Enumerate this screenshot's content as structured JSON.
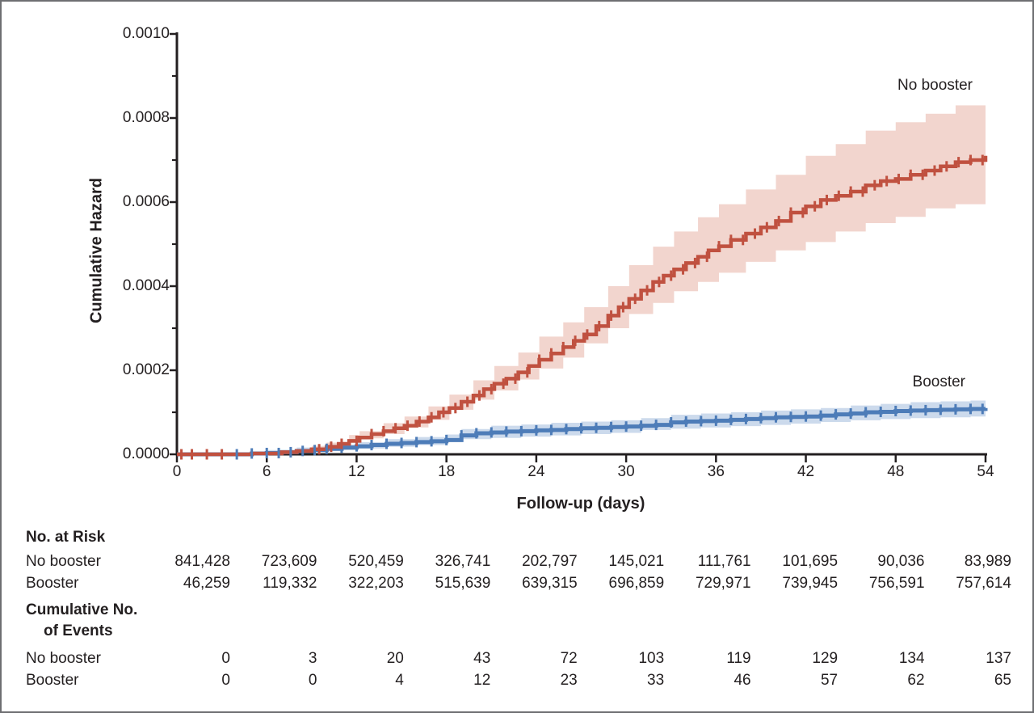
{
  "figure": {
    "y_axis_title": "Cumulative Hazard",
    "x_axis_title": "Follow-up (days)",
    "colors": {
      "no_booster_line": "#c05140",
      "no_booster_band": "#f2d5ce",
      "booster_line": "#4d7cb8",
      "booster_band": "#ccdaec",
      "axis": "#231f20",
      "text": "#231f20",
      "frame_border": "#6e6f72"
    }
  },
  "chart_data": {
    "type": "line",
    "subtype": "step-cumulative-hazard",
    "title": "",
    "xlabel": "Follow-up (days)",
    "ylabel": "Cumulative Hazard",
    "xlim": [
      0,
      54
    ],
    "ylim": [
      0,
      0.001
    ],
    "grid": false,
    "legend_position": "annotations-on-plot",
    "x_ticks": [
      0,
      6,
      12,
      18,
      24,
      30,
      36,
      42,
      48,
      54
    ],
    "x_tick_labels": [
      "0",
      "6",
      "12",
      "18",
      "24",
      "30",
      "36",
      "42",
      "48",
      "54"
    ],
    "y_ticks": [
      0,
      0.0002,
      0.0004,
      0.0006,
      0.0008,
      0.001
    ],
    "y_tick_labels": [
      "0.0000",
      "0.0002",
      "0.0004",
      "0.0006",
      "0.0008",
      "0.0010"
    ],
    "y_minor_ticks": [
      0.0001,
      0.0003,
      0.0005,
      0.0007,
      0.0009
    ],
    "series": [
      {
        "name": "No booster",
        "color": "#c05140",
        "band_color": "#f2d5ce",
        "points": [
          [
            0,
            0
          ],
          [
            5,
            2e-06
          ],
          [
            7,
            5e-06
          ],
          [
            8,
            8e-06
          ],
          [
            9,
            1.2e-05
          ],
          [
            10,
            1.8e-05
          ],
          [
            10.8,
            2.5e-05
          ],
          [
            11.5,
            3.2e-05
          ],
          [
            12.2,
            4e-05
          ],
          [
            13,
            4.8e-05
          ],
          [
            13.8,
            5.5e-05
          ],
          [
            14.5,
            6.2e-05
          ],
          [
            15.2,
            6.8e-05
          ],
          [
            16,
            7.8e-05
          ],
          [
            16.8,
            8.8e-05
          ],
          [
            17.5,
            0.0001
          ],
          [
            18.2,
            0.00011
          ],
          [
            19,
            0.000125
          ],
          [
            19.8,
            0.00014
          ],
          [
            20.5,
            0.000155
          ],
          [
            21.2,
            0.000168
          ],
          [
            22,
            0.00018
          ],
          [
            22.8,
            0.000195
          ],
          [
            23.5,
            0.00021
          ],
          [
            24.2,
            0.000225
          ],
          [
            25,
            0.00024
          ],
          [
            25.8,
            0.000255
          ],
          [
            26.5,
            0.00027
          ],
          [
            27.2,
            0.000285
          ],
          [
            28,
            0.000305
          ],
          [
            28.8,
            0.00033
          ],
          [
            29.5,
            0.00035
          ],
          [
            30.2,
            0.00037
          ],
          [
            31,
            0.00039
          ],
          [
            31.8,
            0.00041
          ],
          [
            32.5,
            0.000425
          ],
          [
            33.2,
            0.00044
          ],
          [
            34,
            0.000455
          ],
          [
            34.8,
            0.00047
          ],
          [
            35.5,
            0.000485
          ],
          [
            36.2,
            0.000495
          ],
          [
            37,
            0.00051
          ],
          [
            38,
            0.000525
          ],
          [
            39,
            0.00054
          ],
          [
            40,
            0.000555
          ],
          [
            41,
            0.000575
          ],
          [
            42,
            0.00059
          ],
          [
            43,
            0.000605
          ],
          [
            44,
            0.000615
          ],
          [
            45,
            0.000625
          ],
          [
            46,
            0.00064
          ],
          [
            47,
            0.00065
          ],
          [
            48,
            0.000655
          ],
          [
            49,
            0.000665
          ],
          [
            50,
            0.000675
          ],
          [
            51,
            0.000685
          ],
          [
            52,
            0.000695
          ],
          [
            53,
            0.0007
          ],
          [
            54,
            0.00071
          ]
        ],
        "band": [
          [
            7,
            2e-06,
            1e-05
          ],
          [
            9,
            6e-06,
            2e-05
          ],
          [
            10,
            1e-05,
            2.8e-05
          ],
          [
            11.5,
            2e-05,
            4.6e-05
          ],
          [
            12.2,
            2.7e-05,
            5.5e-05
          ],
          [
            13.8,
            3.8e-05,
            7.4e-05
          ],
          [
            15.2,
            4.8e-05,
            9e-05
          ],
          [
            16.8,
            6.4e-05,
            0.000114
          ],
          [
            18.2,
            8.2e-05,
            0.000142
          ],
          [
            19.8,
            0.000106,
            0.000176
          ],
          [
            21.2,
            0.00013,
            0.00021
          ],
          [
            22.8,
            0.000152,
            0.000242
          ],
          [
            24.2,
            0.000178,
            0.00028
          ],
          [
            25.8,
            0.000204,
            0.000314
          ],
          [
            27.2,
            0.00023,
            0.00035
          ],
          [
            28.8,
            0.000264,
            0.0004
          ],
          [
            30.2,
            0.0003,
            0.00045
          ],
          [
            31.8,
            0.000334,
            0.000494
          ],
          [
            33.2,
            0.00036,
            0.00053
          ],
          [
            34.8,
            0.000388,
            0.000564
          ],
          [
            36.2,
            0.00041,
            0.000595
          ],
          [
            38,
            0.000432,
            0.00063
          ],
          [
            40,
            0.000458,
            0.000665
          ],
          [
            42,
            0.000485,
            0.00071
          ],
          [
            44,
            0.000505,
            0.000738
          ],
          [
            46,
            0.00053,
            0.00077
          ],
          [
            48,
            0.00055,
            0.00079
          ],
          [
            50,
            0.000565,
            0.00081
          ],
          [
            52,
            0.000585,
            0.00083
          ],
          [
            54,
            0.000595,
            0.000845
          ]
        ],
        "censor_days": [
          0.3,
          1,
          2,
          3,
          9.5,
          10.3,
          11,
          12,
          13,
          13.8,
          14.6,
          15.4,
          16.2,
          17,
          17.8,
          18.6,
          19.4,
          20.2,
          21,
          21.8,
          22.6,
          23.4,
          24.2,
          25,
          25.8,
          26.6,
          27.4,
          28.2,
          29,
          29.8,
          30.6,
          31.4,
          32.2,
          33,
          33.8,
          34.6,
          35.4,
          36.2,
          37,
          37.8,
          38.6,
          39.4,
          40.2,
          41,
          41.8,
          42.6,
          43.4,
          44.2,
          45,
          45.8,
          46.6,
          47.4,
          48.2,
          49,
          49.8,
          50.6,
          51.4,
          52.2,
          53,
          53.8
        ]
      },
      {
        "name": "Booster",
        "color": "#4d7cb8",
        "band_color": "#ccdaec",
        "points": [
          [
            0,
            0
          ],
          [
            5,
            2e-06
          ],
          [
            6,
            3e-06
          ],
          [
            7,
            5e-06
          ],
          [
            8,
            8e-06
          ],
          [
            9,
            1e-05
          ],
          [
            10,
            1.3e-05
          ],
          [
            11,
            1.6e-05
          ],
          [
            12,
            1.9e-05
          ],
          [
            13,
            2.2e-05
          ],
          [
            14,
            2.5e-05
          ],
          [
            15,
            2.7e-05
          ],
          [
            16,
            2.9e-05
          ],
          [
            17,
            3.1e-05
          ],
          [
            18,
            3.4e-05
          ],
          [
            19,
            4.5e-05
          ],
          [
            20,
            5e-05
          ],
          [
            21,
            5.2e-05
          ],
          [
            22,
            5.4e-05
          ],
          [
            23,
            5.5e-05
          ],
          [
            24,
            5.7e-05
          ],
          [
            25,
            5.8e-05
          ],
          [
            26,
            6e-05
          ],
          [
            27,
            6.2e-05
          ],
          [
            28,
            6.3e-05
          ],
          [
            29,
            6.5e-05
          ],
          [
            30,
            6.6e-05
          ],
          [
            31,
            6.8e-05
          ],
          [
            32,
            7e-05
          ],
          [
            33,
            7.6e-05
          ],
          [
            34,
            7.8e-05
          ],
          [
            35,
            7.9e-05
          ],
          [
            36,
            8e-05
          ],
          [
            37,
            8.2e-05
          ],
          [
            38,
            8.4e-05
          ],
          [
            39,
            8.6e-05
          ],
          [
            40,
            8.8e-05
          ],
          [
            41,
            8.9e-05
          ],
          [
            42,
            9e-05
          ],
          [
            43,
            9.2e-05
          ],
          [
            44,
            9.5e-05
          ],
          [
            45,
            9.7e-05
          ],
          [
            46,
            0.0001
          ],
          [
            47,
            0.000101
          ],
          [
            48,
            0.000103
          ],
          [
            49,
            0.000104
          ],
          [
            50,
            0.000105
          ],
          [
            51,
            0.000106
          ],
          [
            52,
            0.000107
          ],
          [
            53,
            0.000108
          ],
          [
            54,
            0.00011
          ]
        ],
        "band": [
          [
            6,
            1e-06,
            1e-05
          ],
          [
            8,
            2e-06,
            1.6e-05
          ],
          [
            10,
            5e-06,
            2.3e-05
          ],
          [
            12,
            1e-05,
            2.9e-05
          ],
          [
            14,
            1.4e-05,
            3.6e-05
          ],
          [
            16,
            1.8e-05,
            4.1e-05
          ],
          [
            18,
            2.2e-05,
            4.7e-05
          ],
          [
            19,
            3e-05,
            6e-05
          ],
          [
            21,
            3.6e-05,
            6.8e-05
          ],
          [
            23,
            3.9e-05,
            7.1e-05
          ],
          [
            25,
            4.2e-05,
            7.5e-05
          ],
          [
            27,
            4.5e-05,
            7.8e-05
          ],
          [
            29,
            4.8e-05,
            8.1e-05
          ],
          [
            31,
            5.1e-05,
            8.6e-05
          ],
          [
            33,
            5.8e-05,
            9.4e-05
          ],
          [
            35,
            6.1e-05,
            9.7e-05
          ],
          [
            37,
            6.4e-05,
            0.0001
          ],
          [
            39,
            6.7e-05,
            0.000104
          ],
          [
            41,
            7e-05,
            0.000107
          ],
          [
            43,
            7.3e-05,
            0.00011
          ],
          [
            45,
            7.7e-05,
            0.000116
          ],
          [
            47,
            8.1e-05,
            0.00012
          ],
          [
            49,
            8.4e-05,
            0.000124
          ],
          [
            51,
            8.6e-05,
            0.000126
          ],
          [
            53,
            8.8e-05,
            0.000128
          ],
          [
            54,
            9e-05,
            0.00013
          ]
        ],
        "censor_days": [
          4,
          5,
          6,
          6.8,
          7.6,
          8.4,
          9.2,
          10,
          11,
          12,
          13,
          14,
          15,
          16,
          17,
          18,
          19,
          20,
          21,
          22,
          23,
          24,
          25,
          26,
          27,
          28,
          29,
          30,
          31,
          32,
          33,
          34,
          35,
          36,
          37,
          38,
          39,
          40,
          41,
          42,
          43,
          44,
          45,
          46,
          47,
          48,
          49,
          50,
          51,
          52,
          53,
          53.8
        ]
      }
    ]
  },
  "risk_table": {
    "header": "No. at Risk",
    "rows": [
      {
        "label": "No booster",
        "values": [
          "841,428",
          "723,609",
          "520,459",
          "326,741",
          "202,797",
          "145,021",
          "111,761",
          "101,695",
          "90,036",
          "83,989"
        ]
      },
      {
        "label": "Booster",
        "values": [
          "46,259",
          "119,332",
          "322,203",
          "515,639",
          "639,315",
          "696,859",
          "729,971",
          "739,945",
          "756,591",
          "757,614"
        ]
      }
    ],
    "events_header_line1": "Cumulative No.",
    "events_header_line2": "of Events",
    "events_rows": [
      {
        "label": "No booster",
        "values": [
          "0",
          "3",
          "20",
          "43",
          "72",
          "103",
          "119",
          "129",
          "134",
          "137"
        ]
      },
      {
        "label": "Booster",
        "values": [
          "0",
          "0",
          "4",
          "12",
          "23",
          "33",
          "46",
          "57",
          "62",
          "65"
        ]
      }
    ]
  }
}
